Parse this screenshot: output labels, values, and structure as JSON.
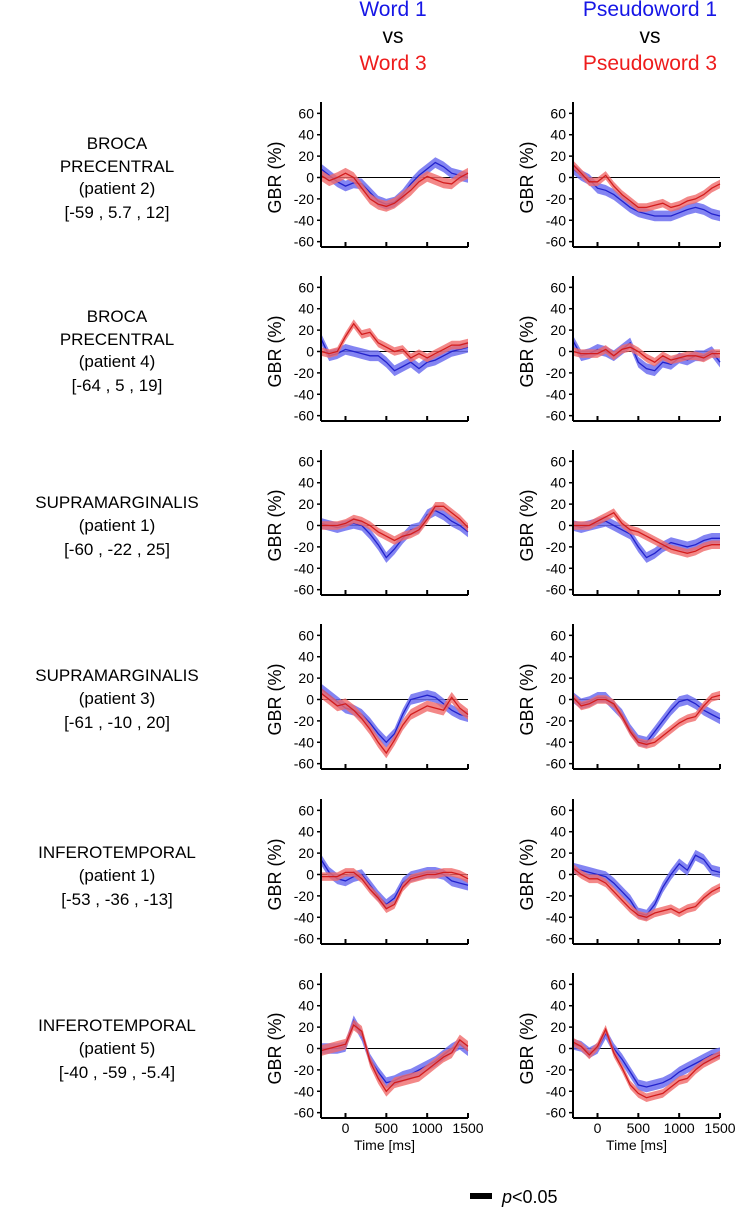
{
  "headers": [
    {
      "top": "Word 1",
      "mid": "vs",
      "bottom": "Word 3"
    },
    {
      "top": "Pseudoword 1",
      "mid": "vs",
      "bottom": "Pseudoword 3"
    }
  ],
  "colors": {
    "condition1_line": "#2222cc",
    "condition1_band": "#6d6ef0",
    "condition3_line": "#d21d1d",
    "condition3_band": "#f06a6a",
    "header_condition1": "#1616e6",
    "header_condition3": "#ee1c1c"
  },
  "rows": [
    {
      "label": [
        "BROCA",
        "PRECENTRAL",
        "(patient 2)",
        "[-59 , 5.7 , 12]"
      ]
    },
    {
      "label": [
        "BROCA",
        "PRECENTRAL",
        "(patient 4)",
        "[-64 , 5 , 19]"
      ]
    },
    {
      "label": [
        "SUPRAMARGINALIS",
        "(patient 1)",
        "[-60 , -22 , 25]"
      ]
    },
    {
      "label": [
        "SUPRAMARGINALIS",
        "(patient 3)",
        "[-61 , -10 , 20]"
      ]
    },
    {
      "label": [
        "INFEROTEMPORAL",
        "(patient 1)",
        "[-53 , -36 , -13]"
      ]
    },
    {
      "label": [
        "INFEROTEMPORAL",
        "(patient 5)",
        "[-40 , -59 , -5.4]"
      ]
    }
  ],
  "legend": {
    "p_symbol": "p",
    "p_text": "<0.05"
  },
  "chart_data": {
    "type": "line",
    "ylabel": "GBR (%)",
    "xlabel": "Time [ms]",
    "xlim": [
      -300,
      1500
    ],
    "ylim": [
      -65,
      65
    ],
    "x_ticks": [
      0,
      500,
      1000,
      1500
    ],
    "x_tick_labels": [
      "0",
      "500",
      "1000",
      "1500"
    ],
    "y_ticks": [
      60,
      40,
      20,
      0,
      -20,
      -40,
      -60
    ],
    "y_tick_labels": [
      "60",
      "40",
      "20",
      "0",
      "-20",
      "-40",
      "-60"
    ],
    "x": [
      -300,
      -200,
      -100,
      0,
      100,
      200,
      300,
      400,
      500,
      600,
      700,
      800,
      900,
      1000,
      1100,
      1200,
      1300,
      1400,
      1500
    ],
    "panels": [
      {
        "row": 0,
        "col": 0,
        "series": [
          {
            "name": "Word 1",
            "band": 5,
            "values": [
              8,
              2,
              -4,
              -8,
              -5,
              -6,
              -14,
              -22,
              -25,
              -23,
              -16,
              -6,
              2,
              8,
              14,
              10,
              4,
              2,
              0
            ]
          },
          {
            "name": "Word 3",
            "band": 5,
            "values": [
              2,
              -3,
              0,
              4,
              0,
              -10,
              -20,
              -25,
              -27,
              -24,
              -18,
              -12,
              -4,
              1,
              -2,
              -5,
              -6,
              0,
              4
            ]
          }
        ]
      },
      {
        "row": 0,
        "col": 1,
        "series": [
          {
            "name": "Pseudoword 1",
            "band": 5,
            "values": [
              8,
              2,
              -2,
              -10,
              -12,
              -16,
              -22,
              -28,
              -32,
              -34,
              -36,
              -36,
              -36,
              -33,
              -30,
              -28,
              -30,
              -34,
              -36
            ]
          },
          {
            "name": "Pseudoword 3",
            "band": 4,
            "values": [
              12,
              4,
              -4,
              -4,
              2,
              -8,
              -16,
              -22,
              -28,
              -28,
              -26,
              -24,
              -28,
              -26,
              -22,
              -20,
              -16,
              -10,
              -6
            ]
          }
        ]
      },
      {
        "row": 1,
        "col": 0,
        "series": [
          {
            "name": "Word 1",
            "band": 5,
            "values": [
              12,
              -4,
              -2,
              2,
              0,
              -2,
              -4,
              -4,
              -10,
              -18,
              -14,
              -10,
              -16,
              -10,
              -8,
              -4,
              0,
              2,
              4
            ]
          },
          {
            "name": "Word 3",
            "band": 4,
            "values": [
              0,
              -2,
              0,
              14,
              26,
              16,
              18,
              8,
              4,
              0,
              2,
              -6,
              -2,
              -6,
              -2,
              2,
              6,
              6,
              8
            ]
          }
        ]
      },
      {
        "row": 1,
        "col": 1,
        "series": [
          {
            "name": "Pseudoword 1",
            "band": 5,
            "values": [
              10,
              -4,
              -2,
              2,
              0,
              -4,
              2,
              8,
              -10,
              -16,
              -18,
              -10,
              -12,
              -6,
              -8,
              -4,
              -4,
              0,
              -10
            ]
          },
          {
            "name": "Pseudoword 3",
            "band": 4,
            "values": [
              0,
              -2,
              -2,
              -2,
              2,
              -4,
              2,
              4,
              0,
              -6,
              -10,
              -4,
              -8,
              -6,
              -4,
              -4,
              -6,
              -2,
              -2
            ]
          }
        ]
      },
      {
        "row": 2,
        "col": 0,
        "series": [
          {
            "name": "Word 1",
            "band": 5,
            "values": [
              2,
              0,
              -2,
              0,
              2,
              0,
              -8,
              -18,
              -30,
              -22,
              -12,
              -4,
              -2,
              10,
              14,
              10,
              4,
              0,
              -6
            ]
          },
          {
            "name": "Word 3",
            "band": 4,
            "values": [
              0,
              0,
              0,
              2,
              6,
              4,
              0,
              -6,
              -10,
              -14,
              -10,
              -8,
              -4,
              6,
              18,
              18,
              12,
              6,
              -2
            ]
          }
        ]
      },
      {
        "row": 2,
        "col": 1,
        "series": [
          {
            "name": "Pseudoword 1",
            "band": 5,
            "values": [
              0,
              -2,
              0,
              2,
              4,
              0,
              -4,
              -8,
              -20,
              -30,
              -26,
              -20,
              -16,
              -18,
              -20,
              -18,
              -14,
              -12,
              -12
            ]
          },
          {
            "name": "Pseudoword 3",
            "band": 4,
            "values": [
              0,
              0,
              0,
              4,
              8,
              12,
              2,
              -4,
              -6,
              -10,
              -14,
              -18,
              -22,
              -24,
              -26,
              -24,
              -20,
              -18,
              -18
            ]
          }
        ]
      },
      {
        "row": 3,
        "col": 0,
        "series": [
          {
            "name": "Word 1",
            "band": 5,
            "values": [
              10,
              4,
              -2,
              -8,
              -10,
              -14,
              -22,
              -32,
              -40,
              -32,
              -14,
              0,
              2,
              4,
              2,
              -4,
              -10,
              -14,
              -16
            ]
          },
          {
            "name": "Word 3",
            "band": 5,
            "values": [
              6,
              0,
              -6,
              -4,
              -10,
              -18,
              -28,
              -40,
              -50,
              -38,
              -24,
              -14,
              -10,
              -6,
              -8,
              -10,
              2,
              -8,
              -14
            ]
          }
        ]
      },
      {
        "row": 3,
        "col": 1,
        "series": [
          {
            "name": "Pseudoword 1",
            "band": 5,
            "values": [
              2,
              -4,
              -2,
              2,
              2,
              -6,
              -14,
              -28,
              -38,
              -40,
              -30,
              -20,
              -10,
              -2,
              0,
              -4,
              -10,
              -14,
              -18
            ]
          },
          {
            "name": "Pseudoword 3",
            "band": 4,
            "values": [
              2,
              -6,
              -4,
              0,
              0,
              -4,
              -16,
              -30,
              -40,
              -42,
              -40,
              -34,
              -28,
              -22,
              -18,
              -16,
              -6,
              2,
              4
            ]
          }
        ]
      },
      {
        "row": 4,
        "col": 0,
        "series": [
          {
            "name": "Word 1",
            "band": 5,
            "values": [
              14,
              2,
              -4,
              -6,
              -2,
              0,
              -10,
              -20,
              -28,
              -22,
              -8,
              -2,
              0,
              2,
              2,
              0,
              -6,
              -8,
              -10
            ]
          },
          {
            "name": "Word 3",
            "band": 4,
            "values": [
              -2,
              -2,
              -2,
              2,
              2,
              -4,
              -14,
              -22,
              -32,
              -28,
              -12,
              -4,
              -2,
              0,
              0,
              2,
              2,
              0,
              -4
            ]
          }
        ]
      },
      {
        "row": 4,
        "col": 1,
        "series": [
          {
            "name": "Pseudoword 1",
            "band": 5,
            "values": [
              6,
              4,
              2,
              0,
              -2,
              -8,
              -16,
              -24,
              -36,
              -38,
              -28,
              -12,
              0,
              10,
              4,
              18,
              14,
              4,
              2
            ]
          },
          {
            "name": "Pseudoword 3",
            "band": 4,
            "values": [
              6,
              0,
              -4,
              -4,
              -8,
              -16,
              -24,
              -32,
              -38,
              -40,
              -36,
              -34,
              -32,
              -36,
              -32,
              -30,
              -22,
              -16,
              -12
            ]
          }
        ]
      },
      {
        "row": 5,
        "col": 0,
        "series": [
          {
            "name": "Word 1",
            "band": 5,
            "values": [
              0,
              0,
              0,
              2,
              26,
              12,
              -10,
              -22,
              -32,
              -30,
              -26,
              -24,
              -20,
              -16,
              -12,
              -6,
              0,
              4,
              -2
            ]
          },
          {
            "name": "Word 3",
            "band": 5,
            "values": [
              -2,
              0,
              2,
              4,
              22,
              16,
              -12,
              -28,
              -40,
              -32,
              -30,
              -28,
              -26,
              -20,
              -14,
              -8,
              -4,
              8,
              2
            ]
          }
        ]
      },
      {
        "row": 5,
        "col": 1,
        "series": [
          {
            "name": "Pseudoword 1",
            "band": 5,
            "values": [
              4,
              2,
              -4,
              0,
              14,
              0,
              -10,
              -22,
              -34,
              -36,
              -34,
              -32,
              -28,
              -22,
              -18,
              -14,
              -10,
              -6,
              -4
            ]
          },
          {
            "name": "Pseudoword 3",
            "band": 4,
            "values": [
              6,
              2,
              -6,
              2,
              18,
              -4,
              -18,
              -34,
              -42,
              -46,
              -44,
              -42,
              -36,
              -30,
              -28,
              -20,
              -14,
              -10,
              -6
            ]
          }
        ]
      }
    ]
  }
}
